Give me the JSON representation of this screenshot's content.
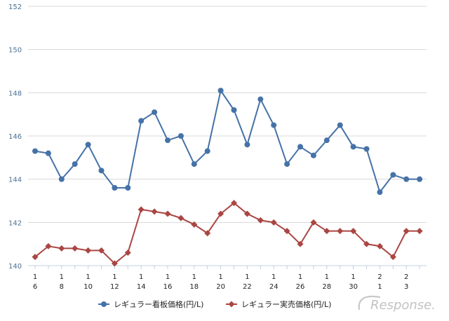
{
  "chart_data": {
    "type": "line",
    "x_labels": [
      {
        "month": "1",
        "day": "6"
      },
      {
        "month": "",
        "day": ""
      },
      {
        "month": "1",
        "day": "8"
      },
      {
        "month": "",
        "day": ""
      },
      {
        "month": "1",
        "day": "10"
      },
      {
        "month": "",
        "day": ""
      },
      {
        "month": "1",
        "day": "12"
      },
      {
        "month": "",
        "day": ""
      },
      {
        "month": "1",
        "day": "14"
      },
      {
        "month": "",
        "day": ""
      },
      {
        "month": "1",
        "day": "16"
      },
      {
        "month": "",
        "day": ""
      },
      {
        "month": "1",
        "day": "18"
      },
      {
        "month": "",
        "day": ""
      },
      {
        "month": "1",
        "day": "20"
      },
      {
        "month": "",
        "day": ""
      },
      {
        "month": "1",
        "day": "22"
      },
      {
        "month": "",
        "day": ""
      },
      {
        "month": "1",
        "day": "24"
      },
      {
        "month": "",
        "day": ""
      },
      {
        "month": "1",
        "day": "26"
      },
      {
        "month": "",
        "day": ""
      },
      {
        "month": "1",
        "day": "28"
      },
      {
        "month": "",
        "day": ""
      },
      {
        "month": "1",
        "day": "30"
      },
      {
        "month": "",
        "day": ""
      },
      {
        "month": "2",
        "day": "1"
      },
      {
        "month": "",
        "day": ""
      },
      {
        "month": "2",
        "day": "3"
      },
      {
        "month": "",
        "day": ""
      }
    ],
    "ylim": [
      140,
      152
    ],
    "yticks": [
      140,
      142,
      144,
      146,
      148,
      150,
      152
    ],
    "grid": true,
    "legend_position": "bottom",
    "series": [
      {
        "name": "レギュラー看板価格(円/L)",
        "color": "#4572a7",
        "marker": "circle",
        "values": [
          145.3,
          145.2,
          144.0,
          144.7,
          145.6,
          144.4,
          143.6,
          143.6,
          146.7,
          147.1,
          145.8,
          146.0,
          144.7,
          145.3,
          148.1,
          147.2,
          145.6,
          147.7,
          146.5,
          144.7,
          145.5,
          145.1,
          145.8,
          146.5,
          145.5,
          145.4,
          143.4,
          144.2,
          144.0,
          144.0
        ]
      },
      {
        "name": "レギュラー実売価格(円/L)",
        "color": "#aa4643",
        "marker": "diamond",
        "values": [
          140.4,
          140.9,
          140.8,
          140.8,
          140.7,
          140.7,
          140.1,
          140.6,
          142.6,
          142.5,
          142.4,
          142.2,
          141.9,
          141.5,
          142.4,
          142.9,
          142.4,
          142.1,
          142.0,
          141.6,
          141.0,
          142.0,
          141.6,
          141.6,
          141.6,
          141.0,
          140.9,
          140.4,
          141.6,
          141.6
        ]
      }
    ]
  },
  "colors": {
    "grid": "#d8d8d8",
    "axis": "#c0d0e0",
    "tick_label": "#4b6f95",
    "watermark": "#c0c0c0"
  },
  "watermark": {
    "text": "Response."
  }
}
